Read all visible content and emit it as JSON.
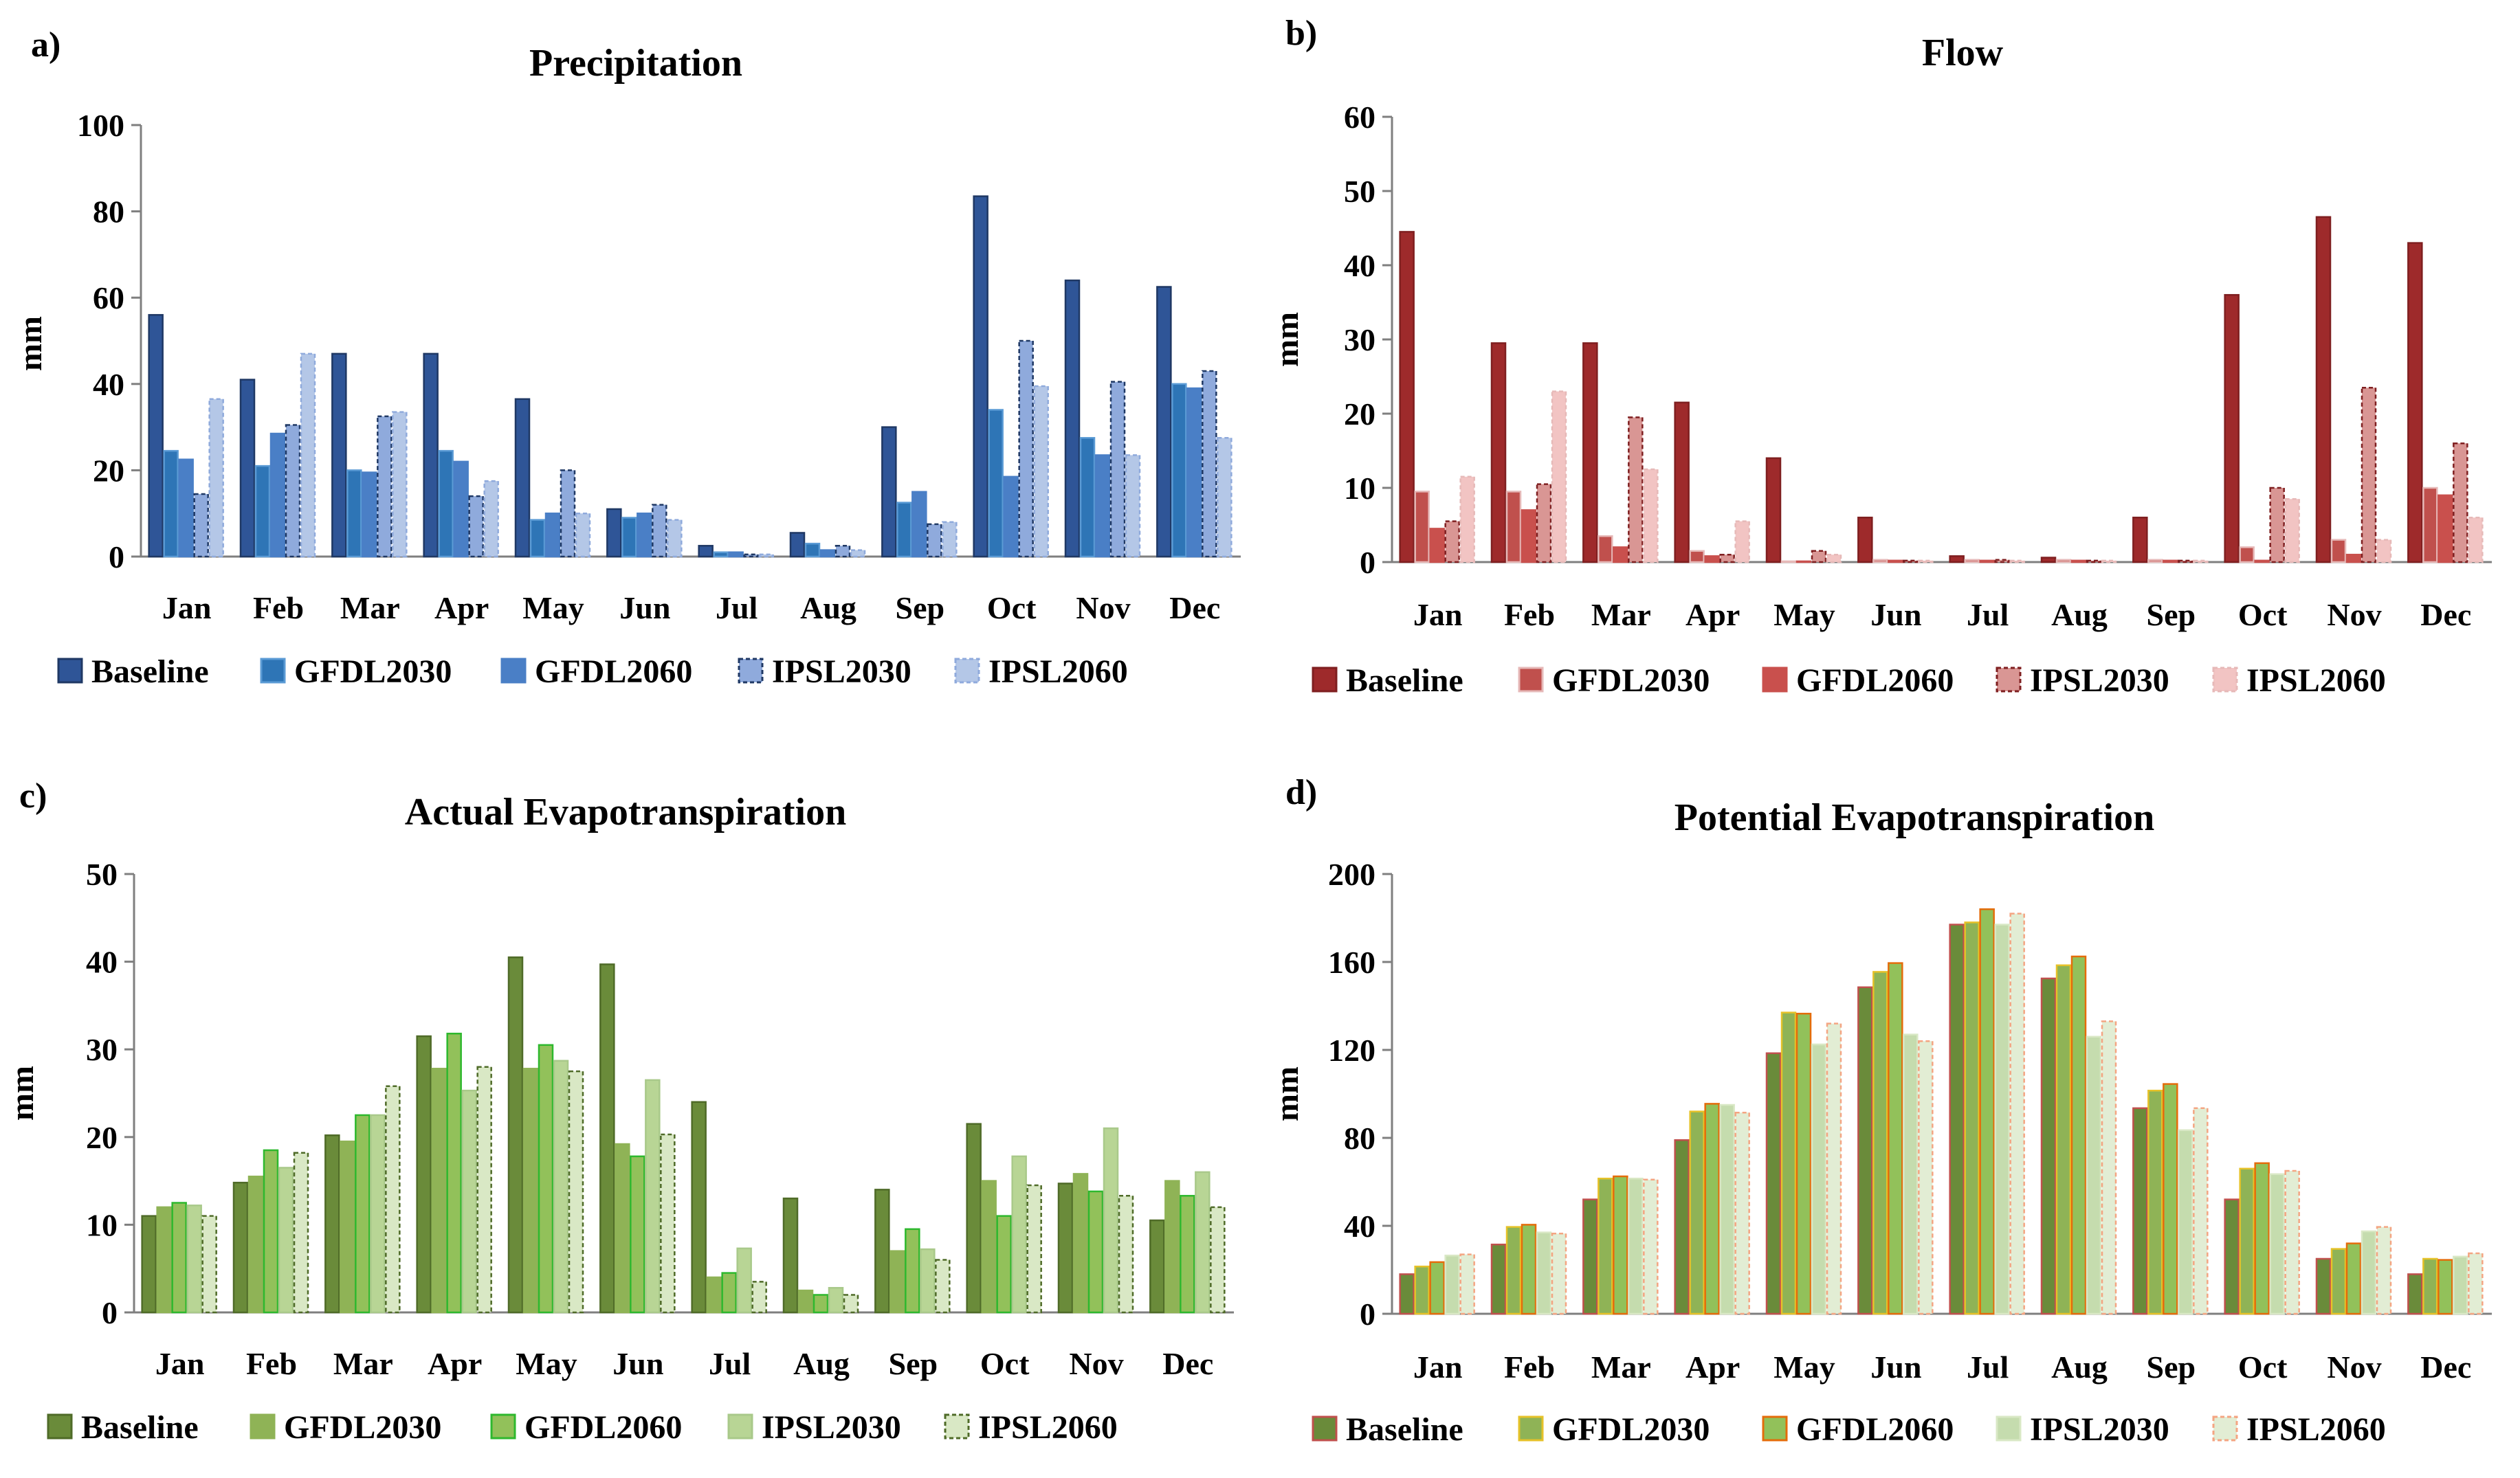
{
  "chart_data": [
    {
      "id": "a",
      "panel_label": "a)",
      "type": "bar",
      "title": "Precipitation",
      "xlabel": "",
      "ylabel": "mm",
      "ylim": [
        0,
        100
      ],
      "yticks": [
        "0",
        "20",
        "40",
        "60",
        "80",
        "100"
      ],
      "grid": false,
      "legend_position": "bottom",
      "categories": [
        "Jan",
        "Feb",
        "Mar",
        "Apr",
        "May",
        "Jun",
        "Jul",
        "Aug",
        "Sep",
        "Oct",
        "Nov",
        "Dec"
      ],
      "series": [
        {
          "name": "Baseline",
          "color": "#2f5597",
          "stroke": "#1f3864",
          "dashed": false,
          "values": [
            56,
            41,
            47,
            47,
            36.5,
            11,
            2.5,
            5.5,
            30,
            83.5,
            64,
            62.5
          ]
        },
        {
          "name": "GFDL2030",
          "color": "#2e75b6",
          "stroke": "#5b9bd5",
          "dashed": false,
          "values": [
            24.5,
            21,
            20,
            24.5,
            8.5,
            9,
            1,
            3,
            12.5,
            34,
            27.5,
            40
          ]
        },
        {
          "name": "GFDL2060",
          "color": "#4a7fc6",
          "stroke": "#4a7fc6",
          "dashed": false,
          "values": [
            22.5,
            28.5,
            19.5,
            22,
            10,
            10,
            1,
            1.5,
            15,
            18.5,
            23.5,
            39
          ]
        },
        {
          "name": "IPSL2030",
          "color": "#8faadc",
          "stroke": "#1f3864",
          "dashed": true,
          "values": [
            14.5,
            30.5,
            32.5,
            14,
            20,
            12,
            0.5,
            2.5,
            7.5,
            50,
            40.5,
            43
          ]
        },
        {
          "name": "IPSL2060",
          "color": "#b4c7e7",
          "stroke": "#8faadc",
          "dashed": true,
          "values": [
            36.5,
            47,
            33.5,
            17.5,
            10,
            8.5,
            0.5,
            1.5,
            8,
            39.5,
            23.5,
            27.5
          ]
        }
      ]
    },
    {
      "id": "b",
      "panel_label": "b)",
      "type": "bar",
      "title": "Flow",
      "xlabel": "",
      "ylabel": "mm",
      "ylim": [
        0,
        60
      ],
      "yticks": [
        "0",
        "10",
        "20",
        "30",
        "40",
        "50",
        "60"
      ],
      "grid": false,
      "legend_position": "bottom",
      "categories": [
        "Jan",
        "Feb",
        "Mar",
        "Apr",
        "May",
        "Jun",
        "Jul",
        "Aug",
        "Sep",
        "Oct",
        "Nov",
        "Dec"
      ],
      "series": [
        {
          "name": "Baseline",
          "color": "#9e2a2b",
          "stroke": "#7f1f20",
          "dashed": false,
          "values": [
            44.5,
            29.5,
            29.5,
            21.5,
            14,
            6,
            0.8,
            0.6,
            6,
            36,
            46.5,
            43
          ]
        },
        {
          "name": "GFDL2030",
          "color": "#c0504d",
          "stroke": "#e6b9b8",
          "dashed": false,
          "values": [
            9.5,
            9.5,
            3.5,
            1.5,
            0.1,
            0.3,
            0.3,
            0.3,
            0.3,
            2,
            3,
            10
          ]
        },
        {
          "name": "GFDL2060",
          "color": "#c9504d",
          "stroke": "#c9504d",
          "dashed": false,
          "values": [
            4.5,
            7,
            2,
            0.8,
            0.1,
            0.2,
            0.2,
            0.2,
            0.2,
            0.2,
            1,
            9
          ]
        },
        {
          "name": "IPSL2030",
          "color": "#d99694",
          "stroke": "#7f1f20",
          "dashed": true,
          "values": [
            5.5,
            10.5,
            19.5,
            1,
            1.5,
            0.2,
            0.3,
            0.2,
            0.2,
            10,
            23.5,
            16
          ]
        },
        {
          "name": "IPSL2060",
          "color": "#f2c4c3",
          "stroke": "#e6b9b8",
          "dashed": true,
          "values": [
            11.5,
            23,
            12.5,
            5.5,
            1,
            0.2,
            0.2,
            0.2,
            0.2,
            8.5,
            3,
            6
          ]
        }
      ]
    },
    {
      "id": "c",
      "panel_label": "c)",
      "type": "bar",
      "title": "Actual Evapotranspiration",
      "xlabel": "",
      "ylabel": "mm",
      "ylim": [
        0,
        50
      ],
      "yticks": [
        "0",
        "10",
        "20",
        "30",
        "40",
        "50"
      ],
      "grid": false,
      "legend_position": "bottom",
      "categories": [
        "Jan",
        "Feb",
        "Mar",
        "Apr",
        "May",
        "Jun",
        "Jul",
        "Aug",
        "Sep",
        "Oct",
        "Nov",
        "Dec"
      ],
      "series": [
        {
          "name": "Baseline",
          "color": "#6a8b3a",
          "stroke": "#4f6b28",
          "dashed": false,
          "values": [
            11,
            14.8,
            20.2,
            31.5,
            40.5,
            39.7,
            24,
            13,
            14,
            21.5,
            14.7,
            10.5
          ]
        },
        {
          "name": "GFDL2030",
          "color": "#8fb356",
          "stroke": "#8fb356",
          "dashed": false,
          "values": [
            12,
            15.5,
            19.5,
            27.8,
            27.8,
            19.2,
            4,
            2.5,
            7,
            15,
            15.8,
            15
          ]
        },
        {
          "name": "GFDL2060",
          "color": "#92c15a",
          "stroke": "#2eb82e",
          "dashed": false,
          "values": [
            12.5,
            18.5,
            22.5,
            31.8,
            30.5,
            17.8,
            4.5,
            2,
            9.5,
            11,
            13.8,
            13.3
          ]
        },
        {
          "name": "IPSL2030",
          "color": "#b8d595",
          "stroke": "#a9c98a",
          "dashed": false,
          "values": [
            12.2,
            16.5,
            22.5,
            25.3,
            28.7,
            26.5,
            7.3,
            2.8,
            7.2,
            17.8,
            21,
            16
          ]
        },
        {
          "name": "IPSL2060",
          "color": "#d9e8c5",
          "stroke": "#4f6b28",
          "dashed": true,
          "values": [
            11,
            18.2,
            25.8,
            28,
            27.5,
            20.3,
            3.5,
            2,
            6,
            14.5,
            13.3,
            12
          ]
        }
      ]
    },
    {
      "id": "d",
      "panel_label": "d)",
      "type": "bar",
      "title": "Potential Evapotranspiration",
      "xlabel": "",
      "ylabel": "mm",
      "ylim": [
        0,
        200
      ],
      "yticks": [
        "0",
        "40",
        "80",
        "120",
        "160",
        "200"
      ],
      "grid": false,
      "legend_position": "bottom",
      "categories": [
        "Jan",
        "Feb",
        "Mar",
        "Apr",
        "May",
        "Jun",
        "Jul",
        "Aug",
        "Sep",
        "Oct",
        "Nov",
        "Dec"
      ],
      "series": [
        {
          "name": "Baseline",
          "color": "#6a8b3a",
          "stroke": "#c0504d",
          "dashed": false,
          "values": [
            18,
            31.5,
            52,
            79,
            118.5,
            148.5,
            177,
            152.5,
            93.5,
            52,
            25,
            18
          ]
        },
        {
          "name": "GFDL2030",
          "color": "#8fb356",
          "stroke": "#e6c229",
          "dashed": false,
          "values": [
            21.5,
            39.5,
            61.5,
            92,
            137,
            155.5,
            178,
            158.5,
            101.5,
            66,
            29.5,
            25
          ]
        },
        {
          "name": "GFDL2060",
          "color": "#92c15a",
          "stroke": "#e46c0a",
          "dashed": false,
          "values": [
            23.5,
            40.5,
            62.5,
            95.5,
            136.5,
            159.5,
            184,
            162.5,
            104.5,
            68.5,
            32,
            24.5
          ]
        },
        {
          "name": "IPSL2030",
          "color": "#c5dcae",
          "stroke": "#d9e8c5",
          "dashed": false,
          "values": [
            26.5,
            37,
            61.5,
            95,
            122.5,
            127,
            177,
            126,
            83.5,
            63.5,
            37.5,
            26
          ]
        },
        {
          "name": "IPSL2060",
          "color": "#e2edd4",
          "stroke": "#f4a582",
          "dashed": true,
          "values": [
            27,
            36.5,
            61,
            91.5,
            132,
            124,
            182,
            133,
            93.5,
            65,
            39.5,
            27.5
          ]
        }
      ]
    }
  ]
}
